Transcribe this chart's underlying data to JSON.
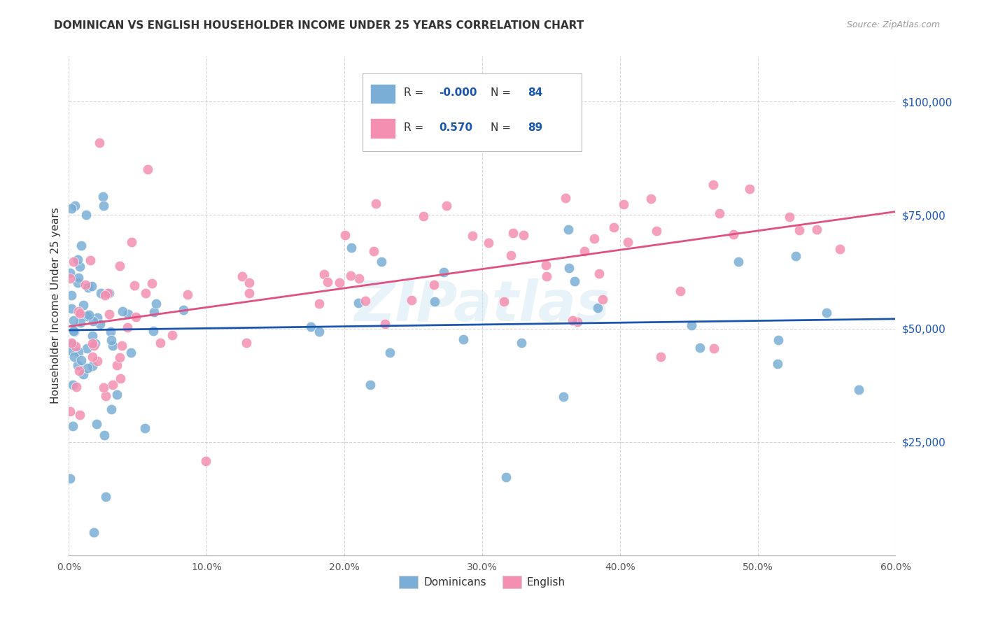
{
  "title": "DOMINICAN VS ENGLISH HOUSEHOLDER INCOME UNDER 25 YEARS CORRELATION CHART",
  "source": "Source: ZipAtlas.com",
  "ylabel": "Householder Income Under 25 years",
  "ytick_values": [
    25000,
    50000,
    75000,
    100000
  ],
  "ymin": 0,
  "ymax": 110000,
  "xmin": 0.0,
  "xmax": 0.6,
  "xticks": [
    0.0,
    0.1,
    0.2,
    0.3,
    0.4,
    0.5,
    0.6
  ],
  "xticklabels": [
    "0.0%",
    "10.0%",
    "20.0%",
    "30.0%",
    "40.0%",
    "50.0%",
    "60.0%"
  ],
  "watermark": "ZIPatlas",
  "legend_r1": "-0.000",
  "legend_n1": "84",
  "legend_r2": "0.570",
  "legend_n2": "89",
  "dominicans_color": "#7aaed6",
  "english_color": "#f48fb1",
  "dominicans_line_color": "#1a56b0",
  "english_line_color": "#e05080",
  "legend_blue_color": "#1a56b0",
  "legend_box_color": "#a8c4e0",
  "legend_pink_box_color": "#f4b8c8",
  "grid_color": "#cccccc",
  "title_color": "#333333",
  "source_color": "#999999",
  "ytick_color": "#1a56b0",
  "dom_seed": 10,
  "eng_seed": 20
}
